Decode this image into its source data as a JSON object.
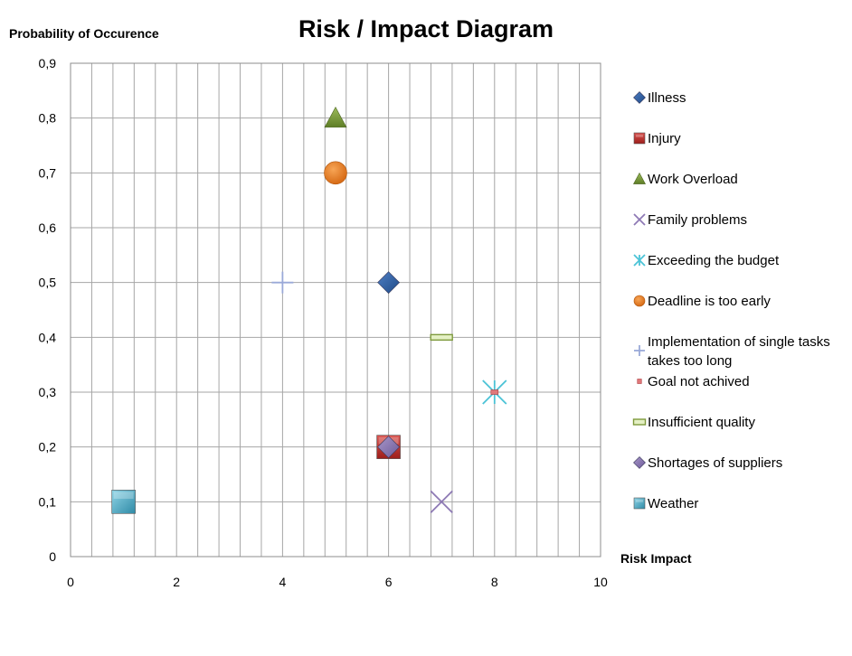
{
  "chart_data": {
    "type": "scatter",
    "title": "Risk / Impact Diagram",
    "xlabel": "Risk Impact",
    "ylabel": "Probability of Occurence",
    "xlim": [
      0,
      10
    ],
    "ylim": [
      0,
      0.9
    ],
    "x_ticks": [
      "0",
      "2",
      "4",
      "6",
      "8",
      "10"
    ],
    "y_ticks": [
      "0",
      "0,1",
      "0,2",
      "0,3",
      "0,4",
      "0,5",
      "0,6",
      "0,7",
      "0,8",
      "0,9"
    ],
    "grid": true,
    "legend_position": "right",
    "series": [
      {
        "name": "Illness",
        "marker": "diamond",
        "color": "#2E5C9E",
        "points": [
          {
            "x": 6,
            "y": 0.5
          }
        ]
      },
      {
        "name": "Injury",
        "marker": "square",
        "color": "#C0302C",
        "points": [
          {
            "x": 6,
            "y": 0.2
          }
        ]
      },
      {
        "name": "Work Overload",
        "marker": "triangle",
        "color": "#7A9A3A",
        "points": [
          {
            "x": 5,
            "y": 0.8
          }
        ]
      },
      {
        "name": "Family problems",
        "marker": "x",
        "color": "#8E7AB5",
        "points": [
          {
            "x": 7,
            "y": 0.1
          }
        ]
      },
      {
        "name": "Exceeding the budget",
        "marker": "star",
        "color": "#4BC3D6",
        "points": [
          {
            "x": 8,
            "y": 0.3
          }
        ]
      },
      {
        "name": "Deadline is too early",
        "marker": "circle",
        "color": "#E87A1E",
        "points": [
          {
            "x": 5,
            "y": 0.7
          }
        ]
      },
      {
        "name": "Implementation of single tasks takes too long",
        "legend_lines": [
          "Implementation of single tasks",
          "takes too long"
        ],
        "marker": "plus",
        "color": "#9AA9D8",
        "points": [
          {
            "x": 4,
            "y": 0.5
          }
        ]
      },
      {
        "name": "Goal not achived",
        "marker": "dash",
        "color": "#E0787A",
        "points": [
          {
            "x": 8,
            "y": 0.3
          }
        ]
      },
      {
        "name": "Insufficient quality",
        "marker": "longdash",
        "color": "#A6C266",
        "points": [
          {
            "x": 7,
            "y": 0.4
          }
        ]
      },
      {
        "name": "Shortages of suppliers",
        "marker": "diamond",
        "color": "#8B78B3",
        "points": [
          {
            "x": 6,
            "y": 0.2
          }
        ]
      },
      {
        "name": "Weather",
        "marker": "square",
        "color": "#4AACC6",
        "points": [
          {
            "x": 1,
            "y": 0.1
          }
        ]
      }
    ]
  }
}
